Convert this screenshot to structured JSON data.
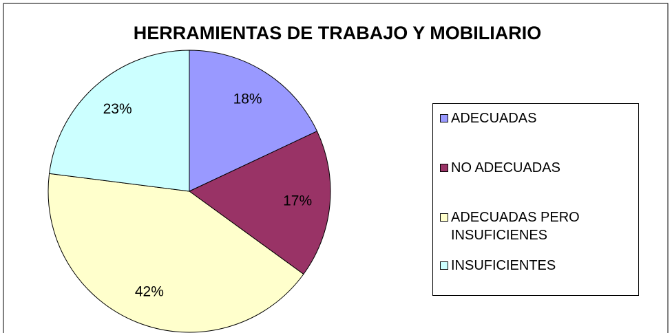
{
  "chart_data": {
    "type": "pie",
    "title": "HERRAMIENTAS DE TRABAJO Y MOBILIARIO",
    "categories": [
      "ADECUADAS",
      "NO ADECUADAS",
      "ADECUADAS PERO INSUFICIENES",
      "INSUFICIENTES"
    ],
    "values": [
      18,
      17,
      42,
      23
    ],
    "value_labels": [
      "18%",
      "17%",
      "42%",
      "23%"
    ],
    "colors": [
      "#9999ff",
      "#993366",
      "#ffffcc",
      "#ccffff"
    ],
    "legend": "right"
  }
}
